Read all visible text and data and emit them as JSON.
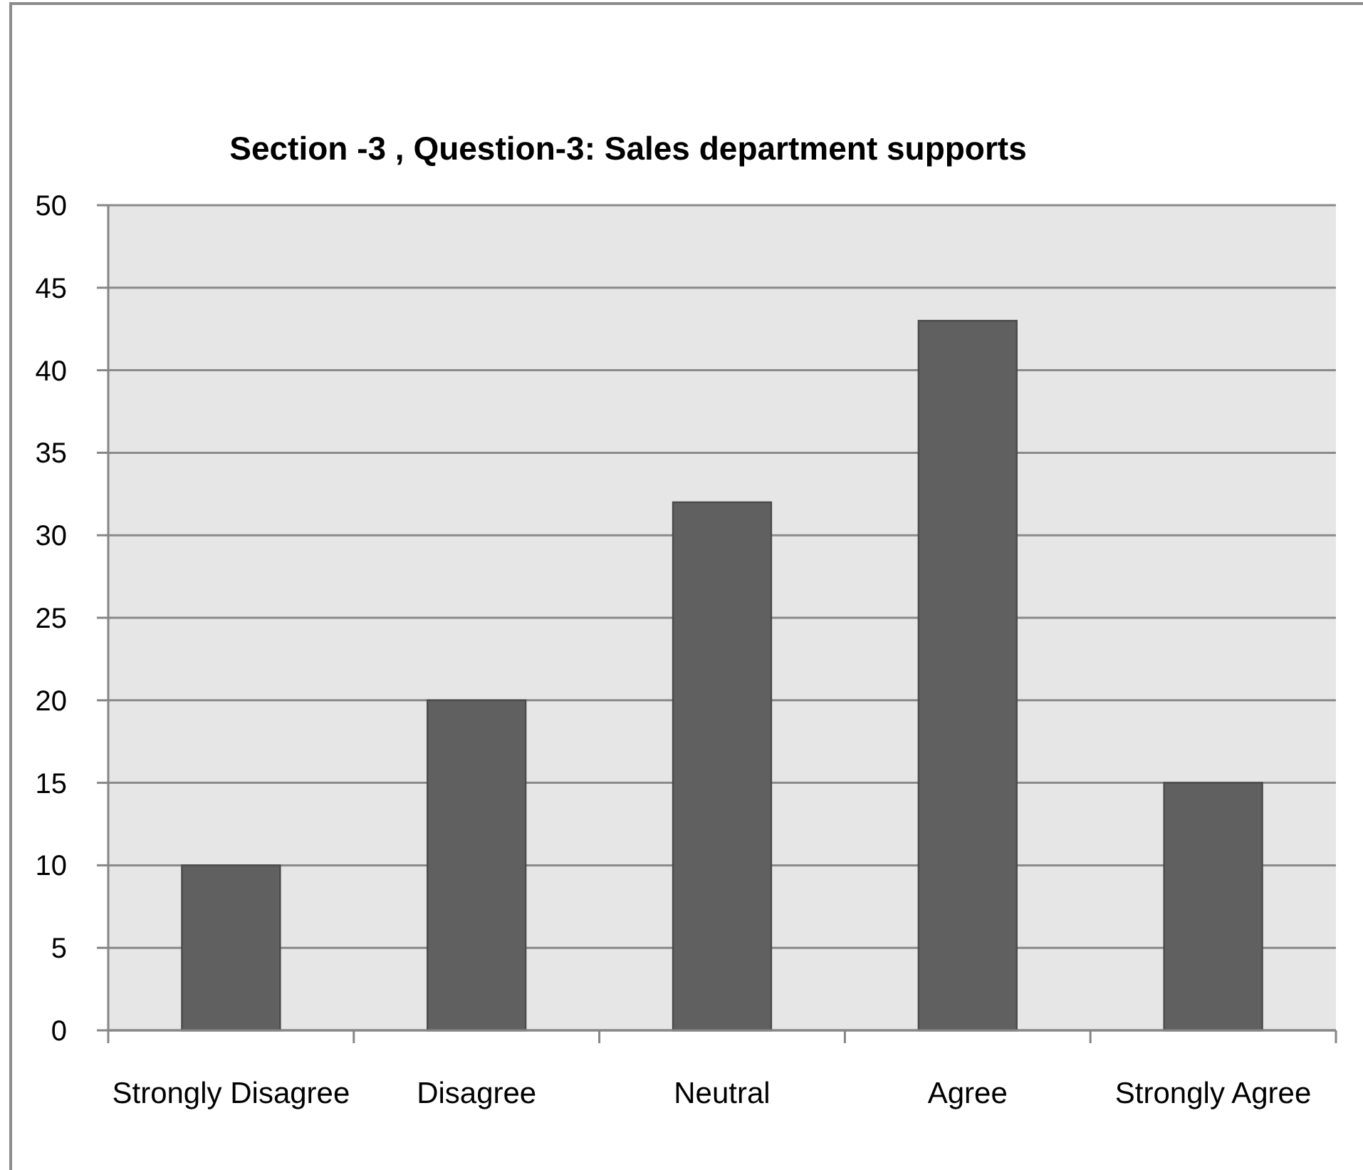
{
  "chart_data": {
    "type": "bar",
    "title": "Section -3 , Question-3: Sales department supports",
    "categories": [
      "Strongly Disagree",
      "Disagree",
      "Neutral",
      "Agree",
      "Strongly Agree"
    ],
    "values": [
      10,
      20,
      32,
      43,
      15
    ],
    "color": "#606060",
    "ylim": [
      0,
      50
    ],
    "yticks": [
      0,
      5,
      10,
      15,
      20,
      25,
      30,
      35,
      40,
      45,
      50
    ],
    "grid": "y"
  }
}
